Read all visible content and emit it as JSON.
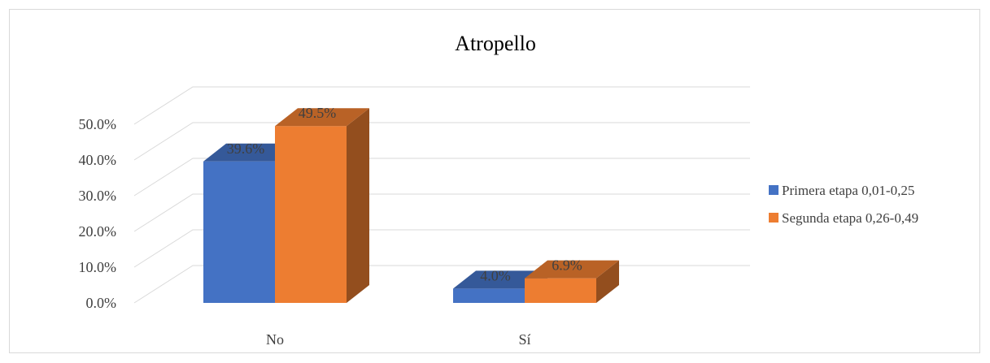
{
  "chart_data": {
    "type": "bar",
    "title": "Atropello",
    "categories": [
      "No",
      "Sí"
    ],
    "series": [
      {
        "name": "Primera etapa 0,01-0,25",
        "values": [
          39.6,
          4.0
        ],
        "labels": [
          "39.6%",
          "4.0%"
        ],
        "color": "#4472c4"
      },
      {
        "name": "Segunda etapa 0,26-0,49",
        "values": [
          49.5,
          6.9
        ],
        "labels": [
          "49.5%",
          "6.9%"
        ],
        "color": "#ed7d31"
      }
    ],
    "ylim": [
      0,
      50
    ],
    "yticks": [
      "0.0%",
      "10.0%",
      "20.0%",
      "30.0%",
      "40.0%",
      "50.0%"
    ],
    "grid": true,
    "style": "3d-clustered-column",
    "legend_position": "right"
  }
}
